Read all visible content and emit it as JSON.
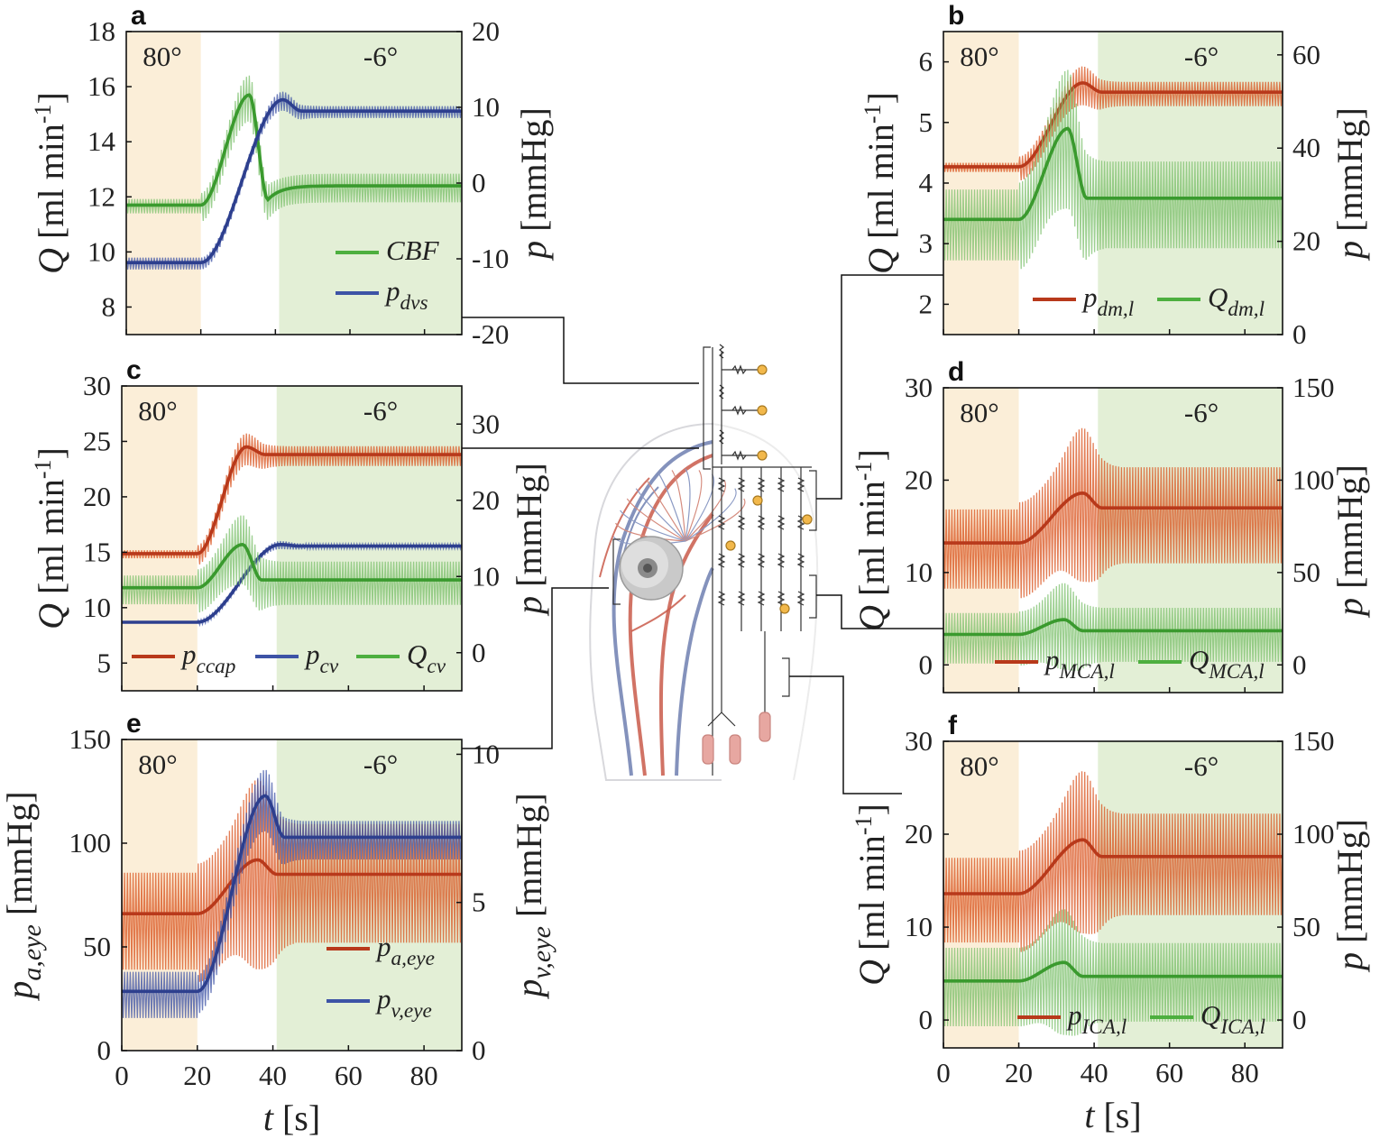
{
  "figure": {
    "x_axis_label": "t [s]",
    "x_ticks": [
      "0",
      "20",
      "40",
      "60",
      "80"
    ],
    "phase_labels": {
      "upright": "80°",
      "tilt": "-6°"
    },
    "colors": {
      "orange_phase": "#fbeed8",
      "green_phase": "#e3efd6",
      "red": "#d9531e",
      "red_dark": "#b8391b",
      "blue": "#3d53a6",
      "green": "#4daf3f",
      "green_light": "#7cc06c"
    }
  },
  "chart_data": [
    {
      "id": "a",
      "type": "line",
      "panel_label": "a",
      "xlabel": "t [s]",
      "ylabel_left": "Q [ml min-1]",
      "ylabel_right": "p [mmHg]",
      "xlim": [
        0,
        90
      ],
      "ylim_left": [
        7,
        18
      ],
      "ylim_right": [
        -20,
        20
      ],
      "yticks_left": [
        "8",
        "10",
        "12",
        "14",
        "16",
        "18"
      ],
      "yticks_right": [
        "-20",
        "-10",
        "0",
        "10",
        "20"
      ],
      "phases": {
        "upright_end": 20,
        "tilt_start": 41
      },
      "legend": [
        "CBF",
        "pdvs"
      ],
      "series": [
        {
          "name": "CBF",
          "axis": "left",
          "color": "green",
          "baseline": 11.7,
          "final": 12.4,
          "peak": 15.7,
          "peak_t": 33,
          "dip": 11.9,
          "osc_before": 0.4,
          "osc_after": 0.8
        },
        {
          "name": "pdvs",
          "axis": "right",
          "color": "blue",
          "baseline": -10.5,
          "final": 9.5,
          "peak": 11,
          "peak_t": 42,
          "osc_before": 1.2,
          "osc_after": 1.2
        }
      ]
    },
    {
      "id": "b",
      "type": "line",
      "panel_label": "b",
      "xlabel": "t [s]",
      "ylabel_left": "Q [ml min-1]",
      "ylabel_right": "p [mmHg]",
      "xlim": [
        0,
        90
      ],
      "ylim_left": [
        1.5,
        6.5
      ],
      "ylim_right": [
        0,
        65
      ],
      "yticks_left": [
        "2",
        "3",
        "4",
        "5",
        "6"
      ],
      "yticks_right": [
        "0",
        "20",
        "40",
        "60"
      ],
      "phases": {
        "upright_end": 20,
        "tilt_start": 41
      },
      "legend": [
        "pdm,l",
        "Qdm,l"
      ],
      "series": [
        {
          "name": "pdm,l",
          "axis": "right",
          "color": "red",
          "baseline": 36,
          "final": 52,
          "peak": 54,
          "peak_t": 37,
          "osc_before": 1.5,
          "osc_after": 4
        },
        {
          "name": "Qdm,l",
          "axis": "left",
          "color": "green",
          "baseline": 3.4,
          "final": 3.75,
          "peak": 4.9,
          "peak_t": 33,
          "osc_before": 0.9,
          "osc_after": 1.1
        }
      ]
    },
    {
      "id": "c",
      "type": "line",
      "panel_label": "c",
      "xlabel": "t [s]",
      "ylabel_left": "Q [ml min-1]",
      "ylabel_right": "p [mmHg]",
      "xlim": [
        0,
        90
      ],
      "ylim_left": [
        2.5,
        30
      ],
      "ylim_right": [
        -5,
        35
      ],
      "yticks_left": [
        "5",
        "10",
        "15",
        "20",
        "25",
        "30"
      ],
      "yticks_right": [
        "0",
        "10",
        "20",
        "30"
      ],
      "phases": {
        "upright_end": 20,
        "tilt_start": 41
      },
      "legend": [
        "pccap",
        "pcv",
        "Qcv"
      ],
      "series": [
        {
          "name": "pccap",
          "axis": "right",
          "color": "red",
          "baseline": 13,
          "final": 26,
          "peak": 27,
          "peak_t": 33,
          "osc_before": 0.8,
          "osc_after": 2
        },
        {
          "name": "pcv",
          "axis": "right",
          "color": "blue",
          "baseline": 4,
          "final": 14,
          "peak": 14.2,
          "peak_t": 42,
          "osc_before": 0,
          "osc_after": 0.5
        },
        {
          "name": "Qcv",
          "axis": "left",
          "color": "green",
          "baseline": 11.8,
          "final": 12.5,
          "peak": 15.7,
          "peak_t": 32,
          "osc_before": 2,
          "osc_after": 3
        }
      ]
    },
    {
      "id": "d",
      "type": "line",
      "panel_label": "d",
      "xlabel": "t [s]",
      "ylabel_left": "Q [ml min-1]",
      "ylabel_right": "p [mmHg]",
      "xlim": [
        0,
        90
      ],
      "ylim_left": [
        -3,
        30
      ],
      "ylim_right": [
        -15,
        150
      ],
      "yticks_left": [
        "0",
        "10",
        "20",
        "30"
      ],
      "yticks_right": [
        "0",
        "50",
        "100",
        "150"
      ],
      "phases": {
        "upright_end": 20,
        "tilt_start": 41
      },
      "legend": [
        "pMCA,l",
        "QMCA,l"
      ],
      "series": [
        {
          "name": "pMCA,l",
          "axis": "right",
          "color": "red",
          "baseline": 66,
          "final": 85,
          "peak": 93,
          "peak_t": 37,
          "osc_before": 33,
          "osc_after": 40
        },
        {
          "name": "QMCA,l",
          "axis": "left",
          "color": "green",
          "baseline": 3.3,
          "final": 3.7,
          "peak": 4.9,
          "peak_t": 32,
          "osc_before": 4.2,
          "osc_after": 4.5
        }
      ]
    },
    {
      "id": "e",
      "type": "line",
      "panel_label": "e",
      "xlabel": "t [s]",
      "ylabel_left": "pa,eye [mmHg]",
      "ylabel_right": "pv,eye [mmHg]",
      "xlim": [
        0,
        90
      ],
      "ylim_left": [
        0,
        150
      ],
      "ylim_right": [
        0,
        10.5
      ],
      "yticks_left": [
        "0",
        "50",
        "100",
        "150"
      ],
      "yticks_right": [
        "0",
        "5",
        "10"
      ],
      "phases": {
        "upright_end": 20,
        "tilt_start": 41
      },
      "legend": [
        "pa,eye",
        "pv,eye"
      ],
      "series": [
        {
          "name": "pa,eye",
          "axis": "left",
          "color": "red",
          "baseline": 66,
          "final": 85,
          "peak": 92,
          "peak_t": 36,
          "osc_before": 36,
          "osc_after": 44
        },
        {
          "name": "pv,eye",
          "axis": "right",
          "color": "blue",
          "baseline": 2.0,
          "final": 7.2,
          "peak": 8.6,
          "peak_t": 38,
          "osc_before": 1.2,
          "osc_after": 1.0
        }
      ]
    },
    {
      "id": "f",
      "type": "line",
      "panel_label": "f",
      "xlabel": "t [s]",
      "ylabel_left": "Q [ml min-1]",
      "ylabel_right": "p [mmHg]",
      "xlim": [
        0,
        90
      ],
      "ylim_left": [
        -3,
        30
      ],
      "ylim_right": [
        -15,
        150
      ],
      "yticks_left": [
        "0",
        "10",
        "20",
        "30"
      ],
      "yticks_right": [
        "0",
        "50",
        "100",
        "150"
      ],
      "phases": {
        "upright_end": 20,
        "tilt_start": 41
      },
      "legend": [
        "pICA,l",
        "QICA,l"
      ],
      "series": [
        {
          "name": "pICA,l",
          "axis": "right",
          "color": "red",
          "baseline": 68,
          "final": 88,
          "peak": 97,
          "peak_t": 37,
          "osc_before": 35,
          "osc_after": 42
        },
        {
          "name": "QICA,l",
          "axis": "left",
          "color": "green",
          "baseline": 4.2,
          "final": 4.7,
          "peak": 6.2,
          "peak_t": 32,
          "osc_before": 6.5,
          "osc_after": 6.5
        }
      ]
    }
  ]
}
